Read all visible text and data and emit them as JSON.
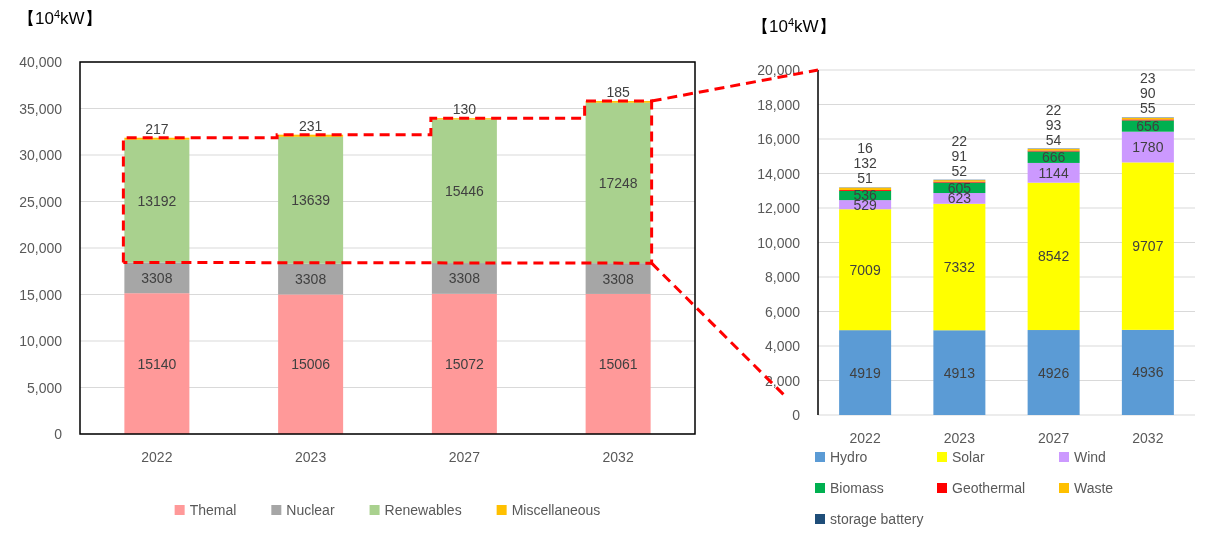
{
  "chart_data": [
    {
      "type": "bar",
      "stacked": true,
      "ylabel": "【10$^{4}$kW】",
      "categories": [
        "2022",
        "2023",
        "2027",
        "2032"
      ],
      "series": [
        {
          "name": "Themal",
          "color": "#ff9999",
          "values": [
            15140,
            15006,
            15072,
            15061
          ]
        },
        {
          "name": "Nuclear",
          "color": "#a6a6a6",
          "values": [
            3308,
            3308,
            3308,
            3308
          ]
        },
        {
          "name": "Renewables",
          "color": "#a9d18e",
          "values": [
            13192,
            13639,
            15446,
            17248
          ]
        },
        {
          "name": "Miscellaneous",
          "color": "#ffc000",
          "values": [
            217,
            231,
            130,
            185
          ]
        }
      ],
      "ylim": [
        0,
        40000
      ],
      "yticks": [
        {
          "value": 0,
          "label": "0"
        },
        {
          "value": 5000,
          "label": "5,000"
        },
        {
          "value": 10000,
          "label": "10,000"
        },
        {
          "value": 15000,
          "label": "15,000"
        },
        {
          "value": 20000,
          "label": "20,000"
        },
        {
          "value": 25000,
          "label": "25,000"
        },
        {
          "value": 30000,
          "label": "30,000"
        },
        {
          "value": 35000,
          "label": "35,000"
        },
        {
          "value": 40000,
          "label": "40,000"
        }
      ],
      "grid": "y",
      "legend": "bottom",
      "data_labels": true
    },
    {
      "type": "bar",
      "stacked": true,
      "ylabel": "【10$^{4}$kW】",
      "categories": [
        "2022",
        "2023",
        "2027",
        "2032"
      ],
      "series": [
        {
          "name": "Hydro",
          "color": "#5b9bd5",
          "values": [
            4919,
            4913,
            4926,
            4936
          ]
        },
        {
          "name": "Solar",
          "color": "#ffff00",
          "values": [
            7009,
            7332,
            8542,
            9707
          ]
        },
        {
          "name": "Wind",
          "color": "#cc99ff",
          "values": [
            529,
            623,
            1144,
            1780
          ]
        },
        {
          "name": "Biomass",
          "color": "#00b050",
          "values": [
            536,
            605,
            666,
            656
          ]
        },
        {
          "name": "Geothermal",
          "color": "#ff0000",
          "values": [
            51,
            52,
            54,
            55
          ]
        },
        {
          "name": "Waste",
          "color": "#ffc000",
          "values": [
            132,
            91,
            93,
            90
          ]
        },
        {
          "name": "storage battery",
          "color": "#1f4e79",
          "values": [
            16,
            22,
            22,
            23
          ]
        }
      ],
      "ylim": [
        0,
        20000
      ],
      "yticks": [
        {
          "value": 0,
          "label": "0"
        },
        {
          "value": 2000,
          "label": "2,000"
        },
        {
          "value": 4000,
          "label": "4,000"
        },
        {
          "value": 6000,
          "label": "6,000"
        },
        {
          "value": 8000,
          "label": "8,000"
        },
        {
          "value": 10000,
          "label": "10,000"
        },
        {
          "value": 12000,
          "label": "12,000"
        },
        {
          "value": 14000,
          "label": "14,000"
        },
        {
          "value": 16000,
          "label": "16,000"
        },
        {
          "value": 18000,
          "label": "18,000"
        },
        {
          "value": 20000,
          "label": "20,000"
        }
      ],
      "grid": "y",
      "legend": "bottom",
      "data_labels": true
    }
  ]
}
